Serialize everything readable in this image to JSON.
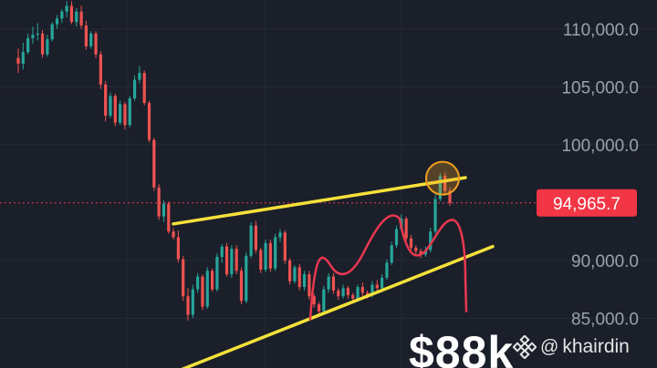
{
  "chart_data": {
    "type": "candlestick",
    "y_axis": {
      "ticks": [
        "110,000.0",
        "105,000.0",
        "100,000.0",
        "90,000.0",
        "85,000.0"
      ],
      "tick_values": [
        110000,
        105000,
        100000,
        90000,
        85000
      ],
      "ylim": [
        80700,
        112500
      ],
      "side": "right"
    },
    "current_price": {
      "label": "94,965.7",
      "value": 94965.7,
      "color": "#f23645"
    },
    "grid": true,
    "colors": {
      "up": "#26a69a",
      "down": "#ef5350",
      "trendline": "#f5e13a",
      "projection": "#e8384f",
      "highlight": "#f0a020",
      "background": "#1b1f2a"
    },
    "candles": [
      [
        107500,
        108300,
        106200,
        107000
      ],
      [
        107000,
        108800,
        106500,
        108000
      ],
      [
        108000,
        109600,
        107800,
        109200
      ],
      [
        109200,
        110200,
        108700,
        109500
      ],
      [
        109500,
        110500,
        109000,
        109600
      ],
      [
        109600,
        109900,
        107500,
        107800
      ],
      [
        107800,
        109500,
        107600,
        109100
      ],
      [
        109100,
        110600,
        108900,
        110400
      ],
      [
        110400,
        111200,
        110000,
        110900
      ],
      [
        110900,
        111700,
        110500,
        111500
      ],
      [
        111500,
        112400,
        111000,
        112000
      ],
      [
        112000,
        112400,
        110400,
        110600
      ],
      [
        110600,
        111800,
        110200,
        111500
      ],
      [
        111500,
        112000,
        110000,
        110300
      ],
      [
        110300,
        110700,
        108200,
        108500
      ],
      [
        108500,
        109800,
        108300,
        109600
      ],
      [
        109600,
        109800,
        107500,
        107800
      ],
      [
        107800,
        108100,
        104800,
        105200
      ],
      [
        105200,
        105500,
        102000,
        102500
      ],
      [
        102500,
        104500,
        102300,
        104200
      ],
      [
        104200,
        104400,
        101600,
        101900
      ],
      [
        101900,
        103800,
        101700,
        103500
      ],
      [
        103500,
        103700,
        101300,
        101700
      ],
      [
        101700,
        104200,
        101500,
        104000
      ],
      [
        104000,
        106000,
        103800,
        105600
      ],
      [
        105600,
        106800,
        105300,
        106200
      ],
      [
        106200,
        106400,
        103400,
        103600
      ],
      [
        103600,
        103800,
        100200,
        100400
      ],
      [
        100400,
        100600,
        96000,
        96300
      ],
      [
        96300,
        96600,
        93500,
        93800
      ],
      [
        93800,
        95200,
        93300,
        94900
      ],
      [
        94900,
        95100,
        92300,
        92500
      ],
      [
        92500,
        92800,
        91800,
        92000
      ],
      [
        92000,
        92600,
        89800,
        90100
      ],
      [
        90100,
        90400,
        86500,
        86900
      ],
      [
        86900,
        87600,
        84800,
        85300
      ],
      [
        85300,
        87900,
        85000,
        87500
      ],
      [
        87500,
        88900,
        87200,
        88600
      ],
      [
        88600,
        88800,
        85700,
        86000
      ],
      [
        86000,
        89400,
        85800,
        89100
      ],
      [
        89100,
        89300,
        87300,
        87500
      ],
      [
        87500,
        90600,
        87300,
        90300
      ],
      [
        90300,
        91400,
        89800,
        91200
      ],
      [
        91200,
        91500,
        88600,
        88800
      ],
      [
        88800,
        91300,
        88500,
        91000
      ],
      [
        91000,
        91300,
        88800,
        89100
      ],
      [
        89100,
        89400,
        86200,
        86500
      ],
      [
        86500,
        90700,
        86300,
        90400
      ],
      [
        90400,
        93300,
        90200,
        93000
      ],
      [
        93000,
        93400,
        90600,
        90900
      ],
      [
        90900,
        91100,
        88900,
        89200
      ],
      [
        89200,
        91800,
        89000,
        91500
      ],
      [
        91500,
        91800,
        89000,
        89300
      ],
      [
        89300,
        92300,
        89100,
        92000
      ],
      [
        92000,
        92700,
        91600,
        92400
      ],
      [
        92400,
        92600,
        89700,
        90000
      ],
      [
        90000,
        90200,
        87900,
        88200
      ],
      [
        88200,
        89600,
        88000,
        89400
      ],
      [
        89400,
        89700,
        87400,
        87700
      ],
      [
        87700,
        89100,
        87400,
        88800
      ],
      [
        88800,
        89100,
        86600,
        86900
      ],
      [
        86900,
        87100,
        85900,
        86200
      ],
      [
        86200,
        86400,
        85300,
        85600
      ],
      [
        85600,
        87800,
        85400,
        87500
      ],
      [
        87500,
        88900,
        87200,
        88600
      ],
      [
        88600,
        88900,
        87100,
        87400
      ],
      [
        87400,
        87600,
        86600,
        86900
      ],
      [
        86900,
        87900,
        86700,
        87600
      ],
      [
        87600,
        87800,
        86700,
        87000
      ],
      [
        87000,
        87200,
        86400,
        86700
      ],
      [
        86700,
        87900,
        86500,
        87700
      ],
      [
        87700,
        88100,
        86900,
        87200
      ],
      [
        87200,
        87400,
        86700,
        87000
      ],
      [
        87000,
        88200,
        86800,
        87900
      ],
      [
        87900,
        88300,
        87300,
        87600
      ],
      [
        87600,
        88800,
        87400,
        88500
      ],
      [
        88500,
        90100,
        88300,
        89800
      ],
      [
        89800,
        91600,
        89600,
        91300
      ],
      [
        91300,
        93000,
        91100,
        92700
      ],
      [
        92700,
        94000,
        92500,
        93600
      ],
      [
        93600,
        93800,
        91500,
        91900
      ],
      [
        91900,
        92200,
        90800,
        91100
      ],
      [
        91100,
        91300,
        90500,
        90800
      ],
      [
        90800,
        91000,
        90200,
        90500
      ],
      [
        90500,
        91200,
        90300,
        90900
      ],
      [
        90900,
        92800,
        90700,
        92500
      ],
      [
        92500,
        95700,
        92300,
        95300
      ],
      [
        95300,
        97500,
        95100,
        97300
      ],
      [
        97300,
        97600,
        95700,
        96000
      ],
      [
        96000,
        96300,
        94700,
        94966
      ]
    ]
  },
  "overlay": {
    "headline": "$88k",
    "watermark_icon": "binance-logo-icon",
    "watermark_handle": "khairdin",
    "watermark_at": "@"
  }
}
